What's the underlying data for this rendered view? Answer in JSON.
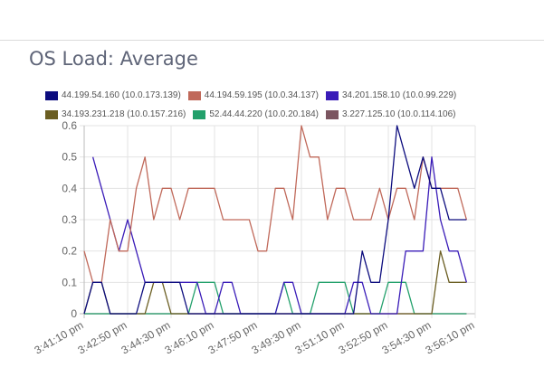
{
  "title": "OS Load: Average",
  "chart_data": {
    "type": "line",
    "title": "OS Load: Average",
    "xlabel": "",
    "ylabel": "",
    "ylim": [
      0,
      0.6
    ],
    "yticks": [
      "0",
      "0.1",
      "0.2",
      "0.3",
      "0.4",
      "0.5",
      "0.6"
    ],
    "xticks": [
      "3:41:10 pm",
      "3:42:50 pm",
      "3:44:30 pm",
      "3:46:10 pm",
      "3:47:50 pm",
      "3:49:30 pm",
      "3:51:10 pm",
      "3:52:50 pm",
      "3:54:30 pm",
      "3:56:10 pm"
    ],
    "x_interval_seconds": 20,
    "grid": true,
    "legend_position": "top",
    "series": [
      {
        "name": "44.199.54.160 (10.0.173.139)",
        "color": "#0c0c7e",
        "values": [
          0,
          0.1,
          0.1,
          0,
          0,
          0,
          0,
          0.1,
          0.1,
          0.1,
          0.1,
          0.1,
          0,
          0,
          0,
          0,
          0,
          0,
          0,
          0,
          0,
          0,
          0,
          0,
          0,
          0,
          0,
          0,
          0,
          0,
          0,
          0,
          0.2,
          0.1,
          0.1,
          0.3,
          0.6,
          0.5,
          0.4,
          0.5,
          0.4,
          0.4,
          0.3,
          0.3,
          0.3
        ]
      },
      {
        "name": "44.194.59.195 (10.0.34.137)",
        "color": "#c0695a",
        "values": [
          0.2,
          0.1,
          0.1,
          0.3,
          0.2,
          0.2,
          0.4,
          0.5,
          0.3,
          0.4,
          0.4,
          0.3,
          0.4,
          0.4,
          0.4,
          0.4,
          0.3,
          0.3,
          0.3,
          0.3,
          0.2,
          0.2,
          0.4,
          0.4,
          0.3,
          0.6,
          0.5,
          0.5,
          0.3,
          0.4,
          0.4,
          0.3,
          0.3,
          0.3,
          0.4,
          0.3,
          0.4,
          0.4,
          0.3,
          0.5,
          0.4,
          0.4,
          0.4,
          0.4,
          0.3
        ]
      },
      {
        "name": "34.201.158.10 (10.0.99.229)",
        "color": "#3a1cb8",
        "values": [
          null,
          0.5,
          0.4,
          0.3,
          0.2,
          0.3,
          0.2,
          0.1,
          0.1,
          0.1,
          0.1,
          0.1,
          0.1,
          0.1,
          0,
          0,
          0.1,
          0.1,
          0,
          0,
          0,
          0,
          0,
          0.1,
          0.1,
          0,
          0,
          0,
          0,
          0,
          0,
          0.1,
          0.1,
          0,
          0,
          0,
          0,
          0.2,
          0.2,
          0.2,
          0.5,
          0.3,
          0.2,
          0.2,
          0.1
        ]
      },
      {
        "name": "34.193.231.218 (10.0.157.216)",
        "color": "#6b5e22",
        "values": [
          0,
          0.1,
          0.1,
          0,
          0,
          0,
          0,
          0,
          0.1,
          0.1,
          0,
          0,
          0,
          0,
          0,
          0,
          0,
          0,
          0,
          0,
          0,
          0,
          0,
          0,
          0,
          0,
          0,
          0,
          0,
          0,
          0,
          0,
          0,
          0,
          0,
          0,
          0,
          0,
          0,
          0,
          0,
          0.2,
          0.1,
          0.1,
          0.1
        ]
      },
      {
        "name": "52.44.44.220 (10.0.20.184)",
        "color": "#22a06b",
        "values": [
          0,
          0,
          0,
          0,
          0,
          0,
          0,
          0,
          0,
          0,
          0,
          0,
          0,
          0.1,
          0.1,
          0.1,
          0,
          0,
          0,
          0,
          0,
          0,
          0,
          0.1,
          0,
          0,
          0,
          0.1,
          0.1,
          0.1,
          0.1,
          0,
          0,
          0,
          0,
          0.1,
          0.1,
          0.1,
          0,
          0,
          0,
          0,
          0,
          0,
          0
        ]
      },
      {
        "name": "3.227.125.10 (10.0.114.106)",
        "color": "#7b5560",
        "values": [
          0,
          0,
          0,
          0,
          0,
          0,
          0,
          0,
          0,
          0,
          0,
          0,
          0,
          0,
          0,
          0,
          0,
          0,
          0,
          0,
          0,
          0,
          0,
          0,
          0,
          0,
          0,
          0,
          0,
          0,
          0,
          0,
          0,
          0,
          0,
          0,
          0,
          0,
          0,
          0,
          0,
          0,
          0,
          0,
          0
        ]
      }
    ]
  }
}
